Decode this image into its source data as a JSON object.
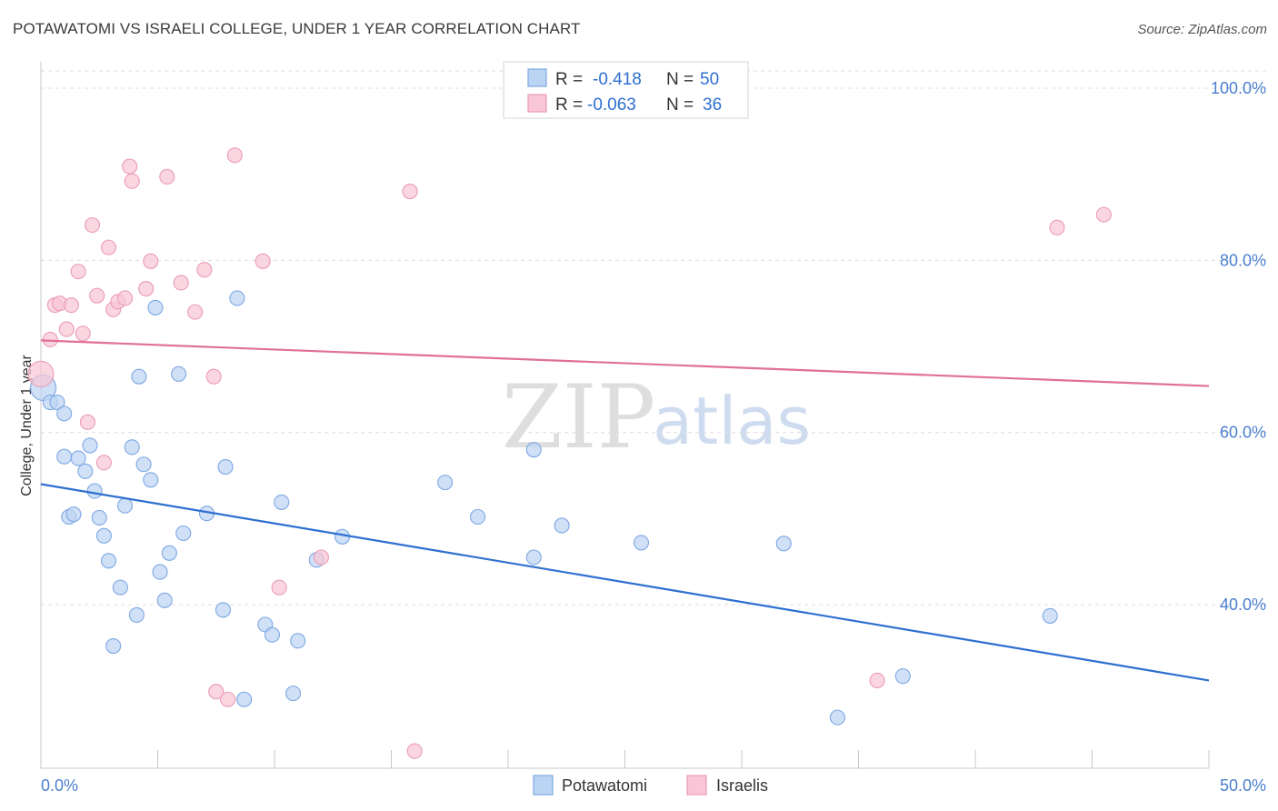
{
  "title": "POTAWATOMI VS ISRAELI COLLEGE, UNDER 1 YEAR CORRELATION CHART",
  "source": "Source: ZipAtlas.com",
  "watermark": {
    "zip": "ZIP",
    "atlas": "atlas"
  },
  "colors": {
    "blue": "#2f6fd0",
    "pink": "#e07096",
    "blue_fill": "#bcd4f4",
    "pink_fill": "#f8c6d6"
  },
  "chart_data": {
    "type": "scatter",
    "xlabel": "",
    "ylabel": "College, Under 1 year",
    "xlim": [
      0,
      50
    ],
    "ylim": [
      21,
      102
    ],
    "x_tick_labels": [
      "0.0%",
      "50.0%"
    ],
    "y_ticks": [
      40,
      60,
      80,
      100
    ],
    "y_tick_labels": [
      "40.0%",
      "60.0%",
      "80.0%",
      "100.0%"
    ],
    "legend": [
      {
        "name": "Potawatomi",
        "r_label": "R = ",
        "r_value": "-0.418",
        "n_label": "N = ",
        "n_value": "50"
      },
      {
        "name": "Israelis",
        "r_label": "R = ",
        "r_value": "-0.063",
        "n_label": "N = ",
        "n_value": "36"
      }
    ],
    "series": [
      {
        "name": "Potawatomi",
        "trend": {
          "x0": 0,
          "y0": 54.0,
          "x1": 50,
          "y1": 31.2
        },
        "points": [
          [
            0.1,
            65.2
          ],
          [
            0.4,
            63.5
          ],
          [
            0.7,
            63.5
          ],
          [
            1.0,
            57.2
          ],
          [
            1.0,
            62.2
          ],
          [
            1.2,
            50.2
          ],
          [
            1.4,
            50.5
          ],
          [
            1.6,
            57.0
          ],
          [
            1.9,
            55.5
          ],
          [
            2.1,
            58.5
          ],
          [
            2.3,
            53.2
          ],
          [
            2.5,
            50.1
          ],
          [
            2.7,
            48.0
          ],
          [
            2.9,
            45.1
          ],
          [
            3.1,
            35.2
          ],
          [
            3.4,
            42.0
          ],
          [
            3.6,
            51.5
          ],
          [
            3.9,
            58.3
          ],
          [
            4.1,
            38.8
          ],
          [
            4.2,
            66.5
          ],
          [
            4.4,
            56.3
          ],
          [
            4.7,
            54.5
          ],
          [
            4.9,
            74.5
          ],
          [
            5.1,
            43.8
          ],
          [
            5.3,
            40.5
          ],
          [
            5.5,
            46.0
          ],
          [
            5.9,
            66.8
          ],
          [
            6.1,
            48.3
          ],
          [
            7.1,
            50.6
          ],
          [
            7.8,
            39.4
          ],
          [
            7.9,
            56.0
          ],
          [
            8.4,
            75.6
          ],
          [
            8.7,
            29.0
          ],
          [
            9.6,
            37.7
          ],
          [
            9.9,
            36.5
          ],
          [
            10.3,
            51.9
          ],
          [
            10.8,
            29.7
          ],
          [
            11.0,
            35.8
          ],
          [
            11.8,
            45.2
          ],
          [
            12.9,
            47.9
          ],
          [
            17.3,
            54.2
          ],
          [
            18.7,
            50.2
          ],
          [
            21.1,
            58.0
          ],
          [
            21.1,
            45.5
          ],
          [
            22.3,
            49.2
          ],
          [
            25.7,
            47.2
          ],
          [
            31.8,
            47.1
          ],
          [
            34.1,
            26.9
          ],
          [
            36.9,
            31.7
          ],
          [
            43.2,
            38.7
          ]
        ]
      },
      {
        "name": "Israelis",
        "trend": {
          "x0": 0,
          "y0": 70.7,
          "x1": 50,
          "y1": 65.4
        },
        "points": [
          [
            0.0,
            66.8
          ],
          [
            0.4,
            70.8
          ],
          [
            0.6,
            74.8
          ],
          [
            0.8,
            75.0
          ],
          [
            1.1,
            72.0
          ],
          [
            1.3,
            74.8
          ],
          [
            1.6,
            78.7
          ],
          [
            1.8,
            71.5
          ],
          [
            2.0,
            61.2
          ],
          [
            2.2,
            84.1
          ],
          [
            2.4,
            75.9
          ],
          [
            2.7,
            56.5
          ],
          [
            2.9,
            81.5
          ],
          [
            3.1,
            74.3
          ],
          [
            3.3,
            75.2
          ],
          [
            3.6,
            75.6
          ],
          [
            3.8,
            90.9
          ],
          [
            3.9,
            89.2
          ],
          [
            4.5,
            76.7
          ],
          [
            4.7,
            79.9
          ],
          [
            5.4,
            89.7
          ],
          [
            6.0,
            77.4
          ],
          [
            6.6,
            74.0
          ],
          [
            7.0,
            78.9
          ],
          [
            7.4,
            66.5
          ],
          [
            7.5,
            29.9
          ],
          [
            8.0,
            29.0
          ],
          [
            8.3,
            92.2
          ],
          [
            9.5,
            79.9
          ],
          [
            10.2,
            42.0
          ],
          [
            12.0,
            45.5
          ],
          [
            15.8,
            88.0
          ],
          [
            16.0,
            23.0
          ],
          [
            35.8,
            31.2
          ],
          [
            43.5,
            83.8
          ],
          [
            45.5,
            85.3
          ]
        ]
      }
    ]
  }
}
